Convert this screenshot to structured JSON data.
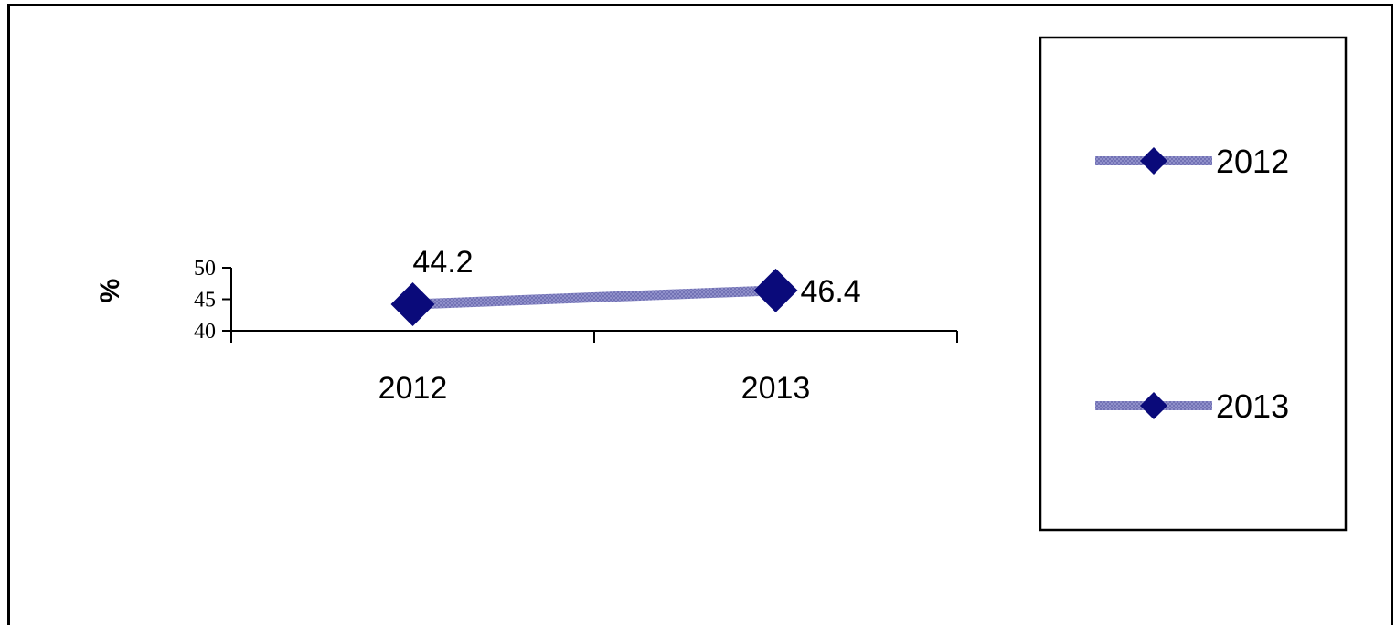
{
  "chart_data": {
    "type": "line",
    "title": "",
    "xlabel": "",
    "ylabel": "%",
    "categories": [
      "2012",
      "2013"
    ],
    "series": [
      {
        "values": [
          44.2,
          46.4
        ],
        "data_labels": [
          "44.2",
          "46.4"
        ]
      }
    ],
    "ylim": [
      40,
      50
    ],
    "yticks": [
      40,
      45,
      50
    ],
    "ytick_labels": [
      "40",
      "45",
      "50"
    ],
    "grid": false,
    "legend": {
      "placement": "right",
      "entries": [
        "2012",
        "2013"
      ]
    },
    "colors": {
      "marker": "#0a0a7a",
      "line": "#8f8fc9",
      "line_shade": "#6b6bb0"
    }
  }
}
